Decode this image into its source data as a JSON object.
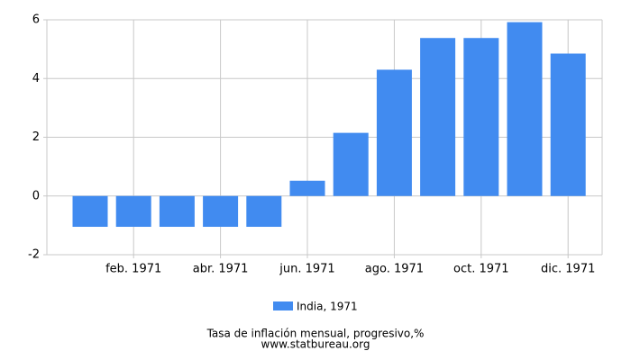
{
  "chart_data": {
    "type": "bar",
    "categories": [
      null,
      "feb. 1971",
      null,
      "abr. 1971",
      null,
      "jun. 1971",
      null,
      "ago. 1971",
      null,
      "oct. 1971",
      null,
      "dic. 1971"
    ],
    "series": [
      {
        "name": "India, 1971",
        "color": "#418bf0",
        "values": [
          -1.05,
          -1.05,
          -1.05,
          -1.05,
          -1.05,
          0.52,
          2.15,
          4.3,
          5.38,
          5.38,
          5.92,
          4.85
        ]
      }
    ],
    "ylim": [
      -2,
      6
    ],
    "yticks": [
      -2,
      0,
      2,
      4,
      6
    ],
    "grid": true,
    "x_label": "Tasa de inflación mensual, progresivo,%",
    "source": "www.statbureau.org"
  }
}
